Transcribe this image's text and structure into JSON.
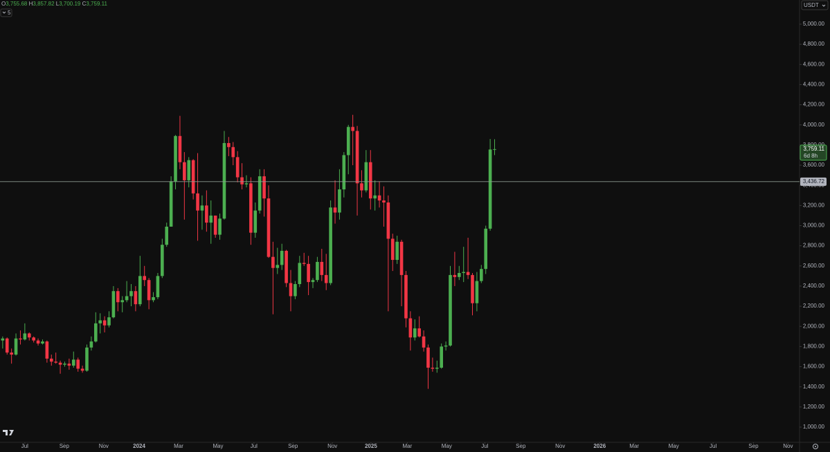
{
  "chart_data": {
    "type": "candlestick",
    "currency": "USDT",
    "indicators_toggle": "5",
    "ohlc_legend": [
      {
        "key": "O",
        "text": "3,755.68"
      },
      {
        "key": "H",
        "text": "3,857.82"
      },
      {
        "key": "L",
        "text": "3,700.19"
      },
      {
        "key": "C",
        "text": "3,759.11"
      }
    ],
    "last_price_label": "3,759.11",
    "countdown": "6d 8h",
    "price_line": {
      "value": 3436.72,
      "label": "3,436.72"
    },
    "up_color": "#4caf50",
    "down_color": "#f23645",
    "grid": false,
    "x": [
      0,
      1,
      2,
      3,
      4,
      5,
      6,
      7,
      8,
      9,
      10,
      11,
      12,
      13,
      14,
      15,
      16,
      17,
      18,
      19,
      20,
      21,
      22,
      23,
      24,
      25,
      26,
      27,
      28,
      29,
      30,
      31,
      32,
      33,
      34,
      35,
      36,
      37,
      38,
      39,
      40,
      41,
      42,
      43,
      44,
      45,
      46,
      47,
      48,
      49,
      50,
      51,
      52,
      53,
      54,
      55,
      56,
      57,
      58,
      59,
      60,
      61,
      62,
      63,
      64,
      65,
      66,
      67,
      68,
      69,
      70,
      71,
      72,
      73,
      74,
      75,
      76,
      77,
      78,
      79,
      80,
      81,
      82,
      83,
      84,
      85,
      86,
      87,
      88,
      89,
      90,
      91,
      92,
      93,
      94,
      95,
      96,
      97,
      98,
      99,
      100,
      101,
      102,
      103,
      104,
      105,
      106,
      107,
      108,
      109,
      110,
      111
    ],
    "open": [
      1860,
      1880,
      1740,
      1720,
      1880,
      1870,
      1930,
      1890,
      1860,
      1830,
      1850,
      1680,
      1650,
      1640,
      1620,
      1630,
      1610,
      1670,
      1580,
      1560,
      1790,
      1850,
      2030,
      2060,
      2010,
      2090,
      2350,
      2240,
      2260,
      2300,
      2350,
      2220,
      2500,
      2460,
      2260,
      2290,
      2500,
      2810,
      2990,
      3440,
      3890,
      3630,
      3450,
      3650,
      3320,
      3150,
      3200,
      3030,
      3100,
      2910,
      3070,
      3820,
      3780,
      3680,
      3480,
      3410,
      3420,
      2930,
      3150,
      3490,
      3270,
      2690,
      2580,
      2610,
      2750,
      2430,
      2300,
      2420,
      2630,
      2620,
      2440,
      2460,
      2640,
      2510,
      2430,
      3180,
      3130,
      3360,
      3700,
      3980,
      3940,
      3420,
      3350,
      3630,
      3270,
      3300,
      3250,
      3230,
      2870,
      2660,
      2840,
      2510,
      2080,
      1890,
      1980,
      1900,
      1790,
      1590,
      1580,
      1590,
      1800,
      1810,
      2510,
      2490,
      2530,
      2540,
      2510,
      2230,
      2450,
      2570,
      2970,
      3755.68
    ],
    "high": [
      1900,
      1890,
      1780,
      1930,
      1960,
      2030,
      1940,
      1900,
      1880,
      1870,
      1860,
      1720,
      1740,
      1660,
      1650,
      1680,
      1750,
      1690,
      1610,
      1820,
      1900,
      2140,
      2130,
      2100,
      2150,
      2400,
      2380,
      2300,
      2450,
      2420,
      2400,
      2700,
      2600,
      2480,
      2340,
      2530,
      2870,
      3030,
      3490,
      3900,
      4090,
      3730,
      3680,
      3660,
      3720,
      3300,
      3350,
      3250,
      3100,
      3120,
      3940,
      3880,
      3830,
      3740,
      3620,
      3500,
      3480,
      3230,
      3560,
      3560,
      3400,
      2840,
      2780,
      2820,
      2760,
      2560,
      2450,
      2700,
      2730,
      2700,
      2480,
      2690,
      2770,
      2720,
      3250,
      3450,
      3560,
      3730,
      4000,
      4100,
      3990,
      3550,
      3750,
      3750,
      3450,
      3440,
      3390,
      3300,
      2920,
      2900,
      2860,
      2550,
      2150,
      2070,
      2100,
      1960,
      1820,
      1690,
      1660,
      1830,
      1850,
      2600,
      2740,
      2600,
      2790,
      2880,
      2530,
      2540,
      2610,
      3000,
      3860,
      3857.82
    ],
    "low": [
      1780,
      1720,
      1630,
      1710,
      1820,
      1860,
      1860,
      1840,
      1810,
      1820,
      1640,
      1610,
      1630,
      1530,
      1600,
      1570,
      1590,
      1550,
      1540,
      1550,
      1760,
      1840,
      1930,
      1940,
      1990,
      2080,
      2150,
      2140,
      2240,
      2200,
      2150,
      2200,
      2400,
      2170,
      2240,
      2270,
      2480,
      2790,
      2990,
      3360,
      3560,
      3060,
      3380,
      3260,
      2850,
      2960,
      2940,
      2820,
      2880,
      2860,
      3060,
      3690,
      3600,
      3430,
      3360,
      3380,
      2810,
      2880,
      3120,
      3090,
      2680,
      2120,
      2520,
      2560,
      2390,
      2150,
      2270,
      2390,
      2600,
      2310,
      2380,
      2440,
      2450,
      2360,
      2410,
      3020,
      3060,
      3280,
      3510,
      3600,
      3100,
      3280,
      3330,
      3160,
      3150,
      3180,
      2990,
      2150,
      2550,
      2620,
      2200,
      1990,
      1760,
      1860,
      1890,
      1750,
      1380,
      1550,
      1540,
      1580,
      1760,
      1800,
      2400,
      2460,
      2440,
      2470,
      2110,
      2150,
      2430,
      2520,
      2950,
      3700.19
    ],
    "close": [
      1880,
      1740,
      1720,
      1880,
      1870,
      1930,
      1890,
      1860,
      1830,
      1850,
      1680,
      1650,
      1640,
      1620,
      1630,
      1610,
      1670,
      1580,
      1560,
      1790,
      1850,
      2030,
      2060,
      2010,
      2090,
      2350,
      2240,
      2260,
      2300,
      2350,
      2220,
      2500,
      2460,
      2260,
      2290,
      2500,
      2810,
      2990,
      3440,
      3890,
      3630,
      3450,
      3650,
      3320,
      3150,
      3200,
      3030,
      3100,
      2910,
      3070,
      3820,
      3780,
      3680,
      3480,
      3410,
      3420,
      2930,
      3150,
      3490,
      3270,
      2690,
      2580,
      2610,
      2750,
      2430,
      2300,
      2420,
      2630,
      2620,
      2440,
      2460,
      2640,
      2510,
      2430,
      3180,
      3130,
      3360,
      3700,
      3980,
      3940,
      3420,
      3350,
      3630,
      3270,
      3300,
      3250,
      3230,
      2870,
      2660,
      2840,
      2510,
      2080,
      1890,
      1980,
      1900,
      1790,
      1590,
      1580,
      1590,
      1800,
      1810,
      2510,
      2490,
      2530,
      2540,
      2510,
      2230,
      2450,
      2570,
      2970,
      3755.68,
      3759.11
    ],
    "xlim": [
      -0.6,
      179.8
    ],
    "xticks": [
      {
        "value": 5.0,
        "label": "Jul"
      },
      {
        "value": 13.9,
        "label": "Sep"
      },
      {
        "value": 22.8,
        "label": "Nov"
      },
      {
        "value": 30.8,
        "label": "2024"
      },
      {
        "value": 39.7,
        "label": "Mar"
      },
      {
        "value": 48.6,
        "label": "May"
      },
      {
        "value": 56.7,
        "label": "Jul"
      },
      {
        "value": 65.5,
        "label": "Sep"
      },
      {
        "value": 74.4,
        "label": "Nov"
      },
      {
        "value": 83.1,
        "label": "2025"
      },
      {
        "value": 91.3,
        "label": "Mar"
      },
      {
        "value": 100.2,
        "label": "May"
      },
      {
        "value": 108.8,
        "label": "Jul"
      },
      {
        "value": 116.9,
        "label": "Sep"
      },
      {
        "value": 125.8,
        "label": "Nov"
      },
      {
        "value": 134.7,
        "label": "2026"
      },
      {
        "value": 142.5,
        "label": "Mar"
      },
      {
        "value": 151.4,
        "label": "May"
      },
      {
        "value": 160.3,
        "label": "Jul"
      },
      {
        "value": 169.4,
        "label": "Sep"
      },
      {
        "value": 177.2,
        "label": "Nov"
      }
    ],
    "ylim": [
      849,
      5240
    ],
    "yticks": [
      {
        "value": 1000,
        "label": "1,000.00"
      },
      {
        "value": 1200,
        "label": "1,200.00"
      },
      {
        "value": 1400,
        "label": "1,400.00"
      },
      {
        "value": 1600,
        "label": "1,600.00"
      },
      {
        "value": 1800,
        "label": "1,800.00"
      },
      {
        "value": 2000,
        "label": "2,000.00"
      },
      {
        "value": 2200,
        "label": "2,200.00"
      },
      {
        "value": 2400,
        "label": "2,400.00"
      },
      {
        "value": 2600,
        "label": "2,600.00"
      },
      {
        "value": 2800,
        "label": "2,800.00"
      },
      {
        "value": 3000,
        "label": "3,000.00"
      },
      {
        "value": 3200,
        "label": "3,200.00"
      },
      {
        "value": 3400,
        "label": "3,400.00"
      },
      {
        "value": 3600,
        "label": "3,600.00"
      },
      {
        "value": 3800,
        "label": "3,800.00"
      },
      {
        "value": 4000,
        "label": "4,000.00"
      },
      {
        "value": 4200,
        "label": "4,200.00"
      },
      {
        "value": 4400,
        "label": "4,400.00"
      },
      {
        "value": 4600,
        "label": "4,600.00"
      },
      {
        "value": 4800,
        "label": "4,800.00"
      },
      {
        "value": 5000,
        "label": "5,000.00"
      }
    ]
  }
}
